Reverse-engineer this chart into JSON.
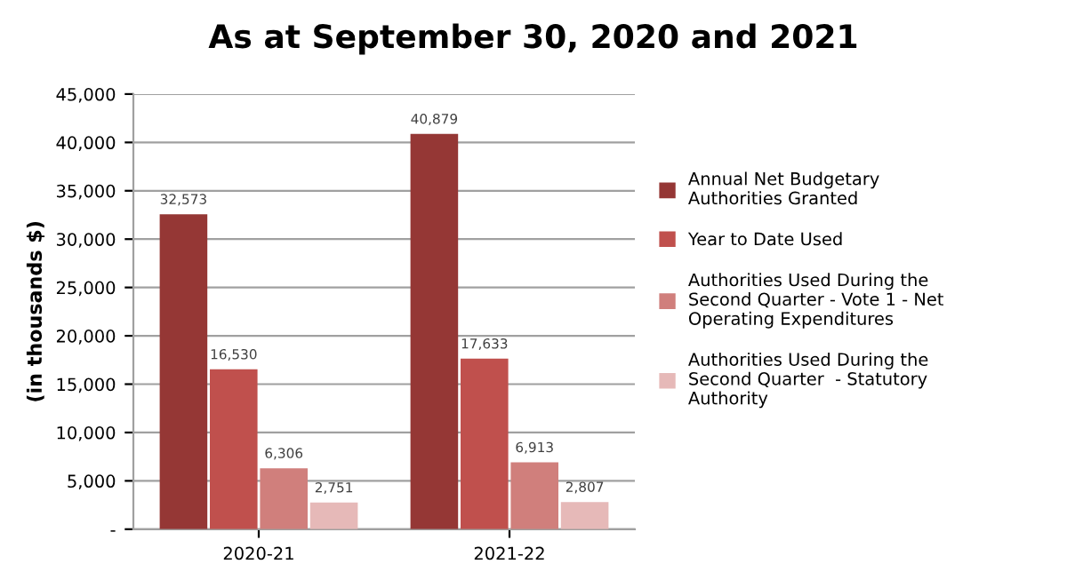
{
  "chart_data": {
    "type": "bar",
    "title": "As at September 30, 2020 and 2021",
    "ylabel": "(in thousands $)",
    "categories": [
      "2020-21",
      "2021-22"
    ],
    "series": [
      {
        "name": "Annual Net Budgetary Authorities Granted",
        "color": "#953735",
        "values": [
          32573,
          40879
        ]
      },
      {
        "name": "Year to Date Used",
        "color": "#c0504d",
        "values": [
          16530,
          17633
        ]
      },
      {
        "name": "Authorities Used During the Second Quarter - Vote 1 - Net Operating Expenditures",
        "color": "#d07f7c",
        "values": [
          6306,
          6913
        ]
      },
      {
        "name": "Authorities Used During the Second Quarter  - Statutory Authority",
        "color": "#e6b9b8",
        "values": [
          2751,
          2807
        ]
      }
    ],
    "ylim": [
      0,
      45000
    ],
    "yticks": [
      {
        "value": 0,
        "label": "-"
      },
      {
        "value": 5000,
        "label": "5,000"
      },
      {
        "value": 10000,
        "label": "10,000"
      },
      {
        "value": 15000,
        "label": "15,000"
      },
      {
        "value": 20000,
        "label": "20,000"
      },
      {
        "value": 25000,
        "label": "25,000"
      },
      {
        "value": 30000,
        "label": "30,000"
      },
      {
        "value": 35000,
        "label": "35,000"
      },
      {
        "value": 40000,
        "label": "40,000"
      },
      {
        "value": 45000,
        "label": "45,000"
      }
    ],
    "grid": "y",
    "legend": "right",
    "value_labels": [
      [
        "32,573",
        "40,879"
      ],
      [
        "16,530",
        "17,633"
      ],
      [
        "6,306",
        "6,913"
      ],
      [
        "2,751",
        "2,807"
      ]
    ]
  }
}
